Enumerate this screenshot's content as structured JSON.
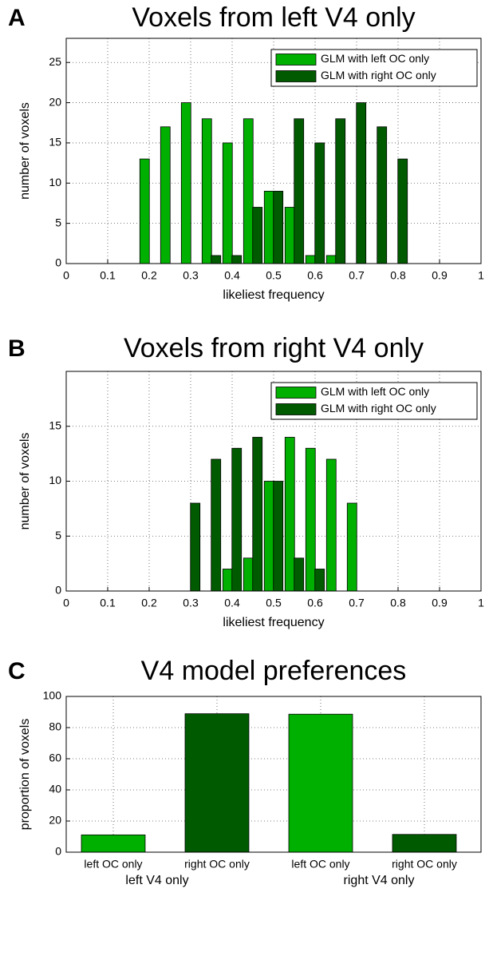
{
  "chart_data": [
    {
      "type": "bar",
      "panel_label": "A",
      "title": "Voxels from left V4 only",
      "x_label": "likeliest frequency",
      "y_label": "number of voxels",
      "x": [
        0.05,
        0.1,
        0.15,
        0.2,
        0.25,
        0.3,
        0.35,
        0.4,
        0.45,
        0.5,
        0.55,
        0.6,
        0.65,
        0.7,
        0.75,
        0.8,
        0.85,
        0.9,
        0.95
      ],
      "series": [
        {
          "name": "GLM with left OC only",
          "color": "#00b000",
          "values": [
            0,
            0,
            0,
            13,
            17,
            20,
            18,
            15,
            18,
            9,
            7,
            1,
            1,
            0,
            0,
            0,
            0,
            0,
            0
          ]
        },
        {
          "name": "GLM with right OC only",
          "color": "#005a00",
          "values": [
            0,
            0,
            0,
            0,
            0,
            0,
            1,
            1,
            7,
            9,
            18,
            15,
            18,
            20,
            17,
            13,
            0,
            0,
            0
          ]
        }
      ],
      "xlim": [
        0,
        1
      ],
      "xticks": [
        0,
        0.1,
        0.2,
        0.3,
        0.4,
        0.5,
        0.6,
        0.7,
        0.8,
        0.9,
        1
      ],
      "ylim": [
        0,
        28
      ],
      "yticks": [
        0,
        5,
        10,
        15,
        20,
        25
      ],
      "grid": true,
      "legend": "upper right"
    },
    {
      "type": "bar",
      "panel_label": "B",
      "title": "Voxels from right V4 only",
      "x_label": "likeliest frequency",
      "y_label": "number of voxels",
      "x": [
        0.3,
        0.35,
        0.4,
        0.45,
        0.5,
        0.55,
        0.6,
        0.65,
        0.7
      ],
      "series": [
        {
          "name": "GLM with left OC only",
          "color": "#00b000",
          "values": [
            0,
            0,
            2,
            3,
            10,
            14,
            13,
            12,
            8
          ]
        },
        {
          "name": "GLM with right OC only",
          "color": "#005a00",
          "values": [
            8,
            12,
            13,
            14,
            10,
            3,
            2,
            0,
            0
          ]
        }
      ],
      "xlim": [
        0,
        1
      ],
      "xticks": [
        0,
        0.1,
        0.2,
        0.3,
        0.4,
        0.5,
        0.6,
        0.7,
        0.8,
        0.9,
        1
      ],
      "ylim": [
        0,
        20
      ],
      "yticks": [
        0,
        5,
        10,
        15
      ],
      "grid": true,
      "legend": "upper right"
    },
    {
      "type": "bar",
      "panel_label": "C",
      "title": "V4 model preferences",
      "y_label": "proportion of voxels",
      "categories": [
        "left OC only",
        "right OC only",
        "left OC only",
        "right OC only"
      ],
      "group_labels": [
        "left V4 only",
        "right V4 only"
      ],
      "values": [
        11.1,
        88.9,
        88.6,
        11.4
      ],
      "colors": [
        "#00b000",
        "#005a00",
        "#00b000",
        "#005a00"
      ],
      "ylim": [
        0,
        100
      ],
      "yticks": [
        0,
        20,
        40,
        60,
        80,
        100
      ],
      "grid": true
    }
  ]
}
